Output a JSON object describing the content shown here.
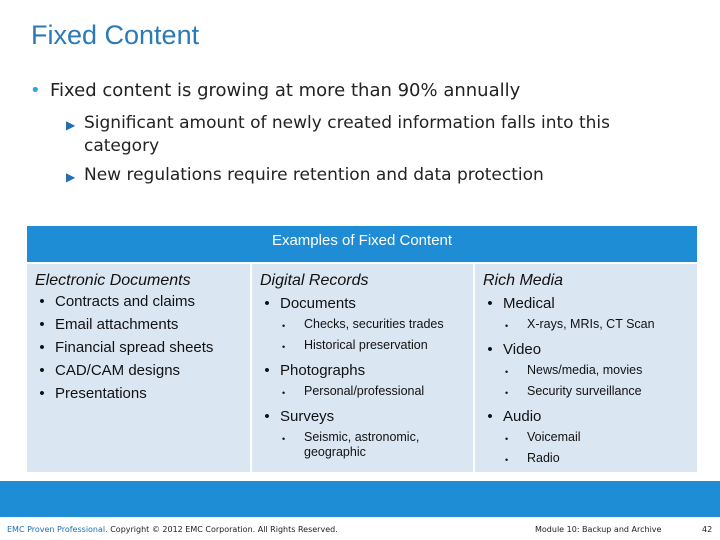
{
  "title": "Fixed Content",
  "bullet": {
    "text": "Fixed content is growing at more than 90% annually",
    "subs": [
      "Significant amount of newly created information falls into this category",
      "New regulations require retention and data protection"
    ]
  },
  "table": {
    "header": "Examples of Fixed Content",
    "col1": {
      "title": "Electronic Documents",
      "items": [
        "Contracts and claims",
        "Email attachments",
        "Financial spread sheets",
        "CAD/CAM designs",
        "Presentations"
      ]
    },
    "col2": {
      "title": "Digital Records",
      "groups": [
        {
          "label": "Documents",
          "subs": [
            "Checks, securities trades",
            "Historical preservation"
          ]
        },
        {
          "label": "Photographs",
          "subs": [
            "Personal/professional"
          ]
        },
        {
          "label": "Surveys",
          "subs": [
            "Seismic, astronomic, geographic"
          ]
        }
      ]
    },
    "col3": {
      "title": "Rich Media",
      "groups": [
        {
          "label": "Medical",
          "subs": [
            "X-rays, MRIs, CT Scan"
          ]
        },
        {
          "label": "Video",
          "subs": [
            "News/media, movies",
            "Security surveillance"
          ]
        },
        {
          "label": "Audio",
          "subs": [
            "Voicemail",
            "Radio"
          ]
        }
      ]
    }
  },
  "footer": {
    "brand": "EMC Proven Professional.",
    "copyright": " Copyright © 2012 EMC Corporation. All Rights Reserved.",
    "module": "Module 10: Backup and Archive",
    "page": "42"
  }
}
